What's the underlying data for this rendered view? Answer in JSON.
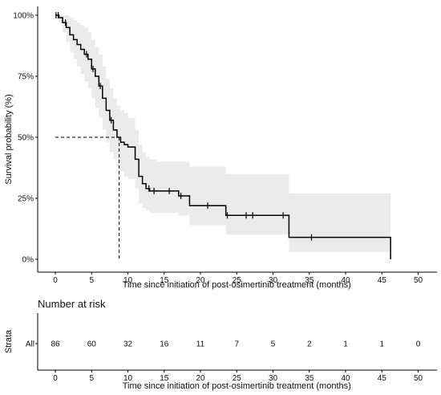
{
  "chart_data": [
    {
      "type": "line",
      "subtype": "kaplan-meier",
      "ylabel": "Survival probability (%)",
      "xlabel": "Time since initiation of post-osimertinib treatment (months)",
      "xlim": [
        0,
        50
      ],
      "ylim": [
        0,
        100
      ],
      "x_ticks": [
        0,
        5,
        10,
        15,
        20,
        25,
        30,
        35,
        40,
        45,
        50
      ],
      "y_ticks": [
        0,
        25,
        50,
        75,
        100
      ],
      "y_tick_labels": [
        "0%",
        "25%",
        "50%",
        "75%",
        "100%"
      ],
      "median_survival": {
        "x": 8.8,
        "y": 50
      },
      "colors": {
        "line": "#000000",
        "ci_band": "#ebebeb"
      },
      "series": [
        {
          "step_times": [
            0,
            0.5,
            1,
            1.5,
            2,
            2.5,
            3,
            3.5,
            4,
            4.5,
            5,
            5.5,
            6,
            6.5,
            7,
            7.5,
            8,
            8.5,
            9,
            9.5,
            10,
            11,
            11.5,
            12,
            12.5,
            13,
            14,
            17,
            18.5,
            23.5,
            32.2,
            46.2
          ],
          "survival": [
            100,
            99,
            97,
            95,
            92,
            90,
            88,
            86,
            84,
            82,
            78,
            75,
            71,
            66,
            61,
            57,
            53,
            50,
            48,
            47,
            46,
            41,
            34,
            31,
            29,
            28,
            28,
            26,
            22,
            18,
            9,
            0
          ],
          "censor_times": [
            0.1,
            0.4,
            1.4,
            4.3,
            5.2,
            6.2,
            7.7,
            12.9,
            13.6,
            15.7,
            17.3,
            21,
            23.7,
            26.3,
            27.2,
            31.4,
            35.3
          ],
          "ci_lower": [
            100,
            97,
            93,
            89,
            85,
            82,
            79,
            76,
            73,
            70,
            66,
            62,
            58,
            53,
            48,
            44,
            41,
            38,
            36,
            34,
            33,
            29,
            23,
            21,
            20,
            19,
            19,
            18,
            14,
            10,
            3,
            0
          ],
          "ci_upper": [
            100,
            100,
            100,
            100,
            99,
            98,
            97,
            96,
            95,
            93,
            90,
            87,
            84,
            79,
            74,
            70,
            66,
            63,
            61,
            60,
            58,
            53,
            47,
            44,
            42,
            41,
            40,
            40,
            38,
            35,
            27,
            27
          ]
        }
      ]
    },
    {
      "type": "table",
      "title": "Number at risk",
      "ylabel": "Strata",
      "row_label": "All",
      "xlabel": "Time since initiation of post-osimertinib treatment (months)",
      "x_ticks": [
        0,
        5,
        10,
        15,
        20,
        25,
        30,
        35,
        40,
        45,
        50
      ],
      "values": [
        86,
        60,
        32,
        16,
        11,
        7,
        5,
        2,
        1,
        1,
        0
      ]
    }
  ]
}
